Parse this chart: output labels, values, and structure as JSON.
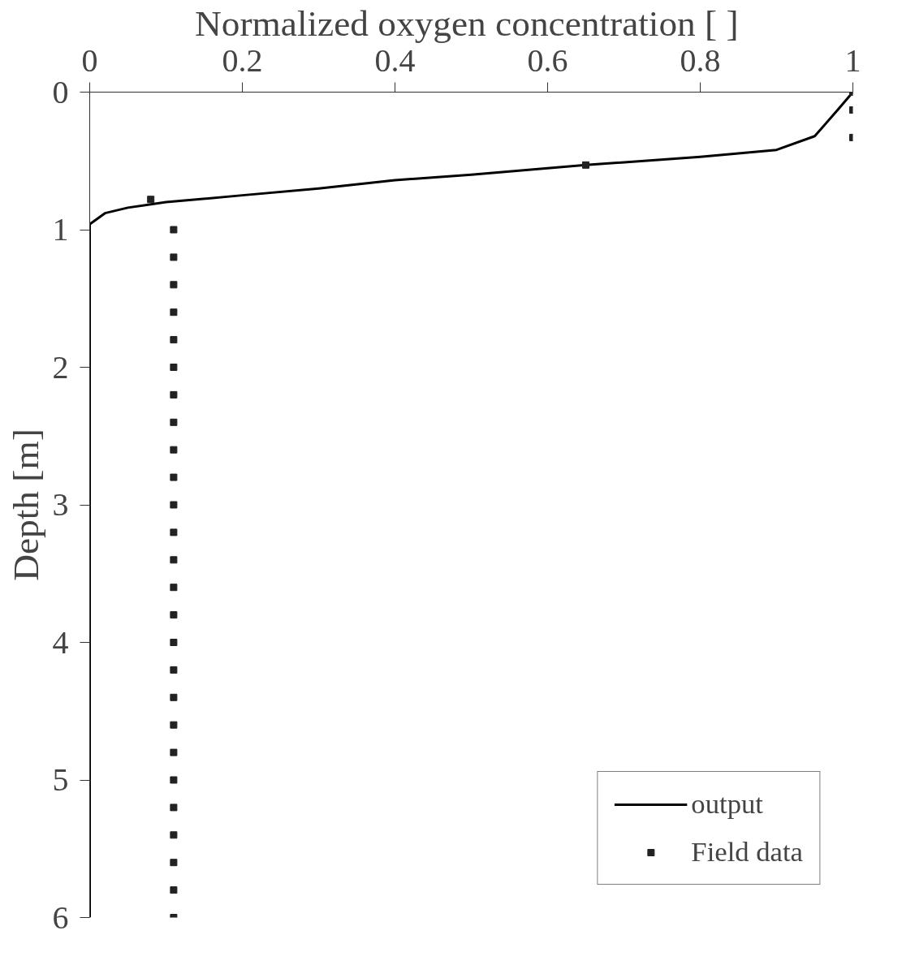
{
  "chart_data": {
    "type": "scatter",
    "xlabel": "Normalized oxygen concentration [  ]",
    "ylabel": "Depth [m]",
    "xlim": [
      0,
      1
    ],
    "xticks": [
      0,
      0.2,
      0.4,
      0.6,
      0.8,
      1
    ],
    "ylim": [
      6,
      0
    ],
    "yticks": [
      0,
      1,
      2,
      3,
      4,
      5,
      6
    ],
    "grid": false,
    "legend": "bottom right",
    "series": [
      {
        "name": "output",
        "type": "line",
        "color": "#000000",
        "marker": "none",
        "line_style": "solid",
        "x": [
          1,
          0.98,
          0.95,
          0.9,
          0.8,
          0.65,
          0.5,
          0.4,
          0.3,
          0.2,
          0.1,
          0.05,
          0.02,
          0.01,
          0,
          0
        ],
        "values": [
          0,
          0.13,
          0.32,
          0.42,
          0.47,
          0.53,
          0.6,
          0.64,
          0.7,
          0.75,
          0.8,
          0.84,
          0.88,
          0.92,
          0.96,
          6
        ]
      },
      {
        "name": "Field data",
        "color": "#222222",
        "marker": "square",
        "x": [
          1,
          1,
          1,
          0.65,
          0.08,
          0.11,
          0.11,
          0.11,
          0.11,
          0.11,
          0.11,
          0.11,
          0.11,
          0.11,
          0.11,
          0.11,
          0.11,
          0.11,
          0.11,
          0.11,
          0.11,
          0.11,
          0.11,
          0.11,
          0.11,
          0.11,
          0.11,
          0.11,
          0.11,
          0.11,
          0.11
        ],
        "values": [
          0,
          0.13,
          0.33,
          0.53,
          0.78,
          1.0,
          1.2,
          1.4,
          1.6,
          1.8,
          2.0,
          2.2,
          2.4,
          2.6,
          2.8,
          3.0,
          3.2,
          3.4,
          3.6,
          3.8,
          4.0,
          4.2,
          4.4,
          4.6,
          4.8,
          5.0,
          5.2,
          5.4,
          5.6,
          5.8,
          6.0
        ]
      }
    ]
  }
}
